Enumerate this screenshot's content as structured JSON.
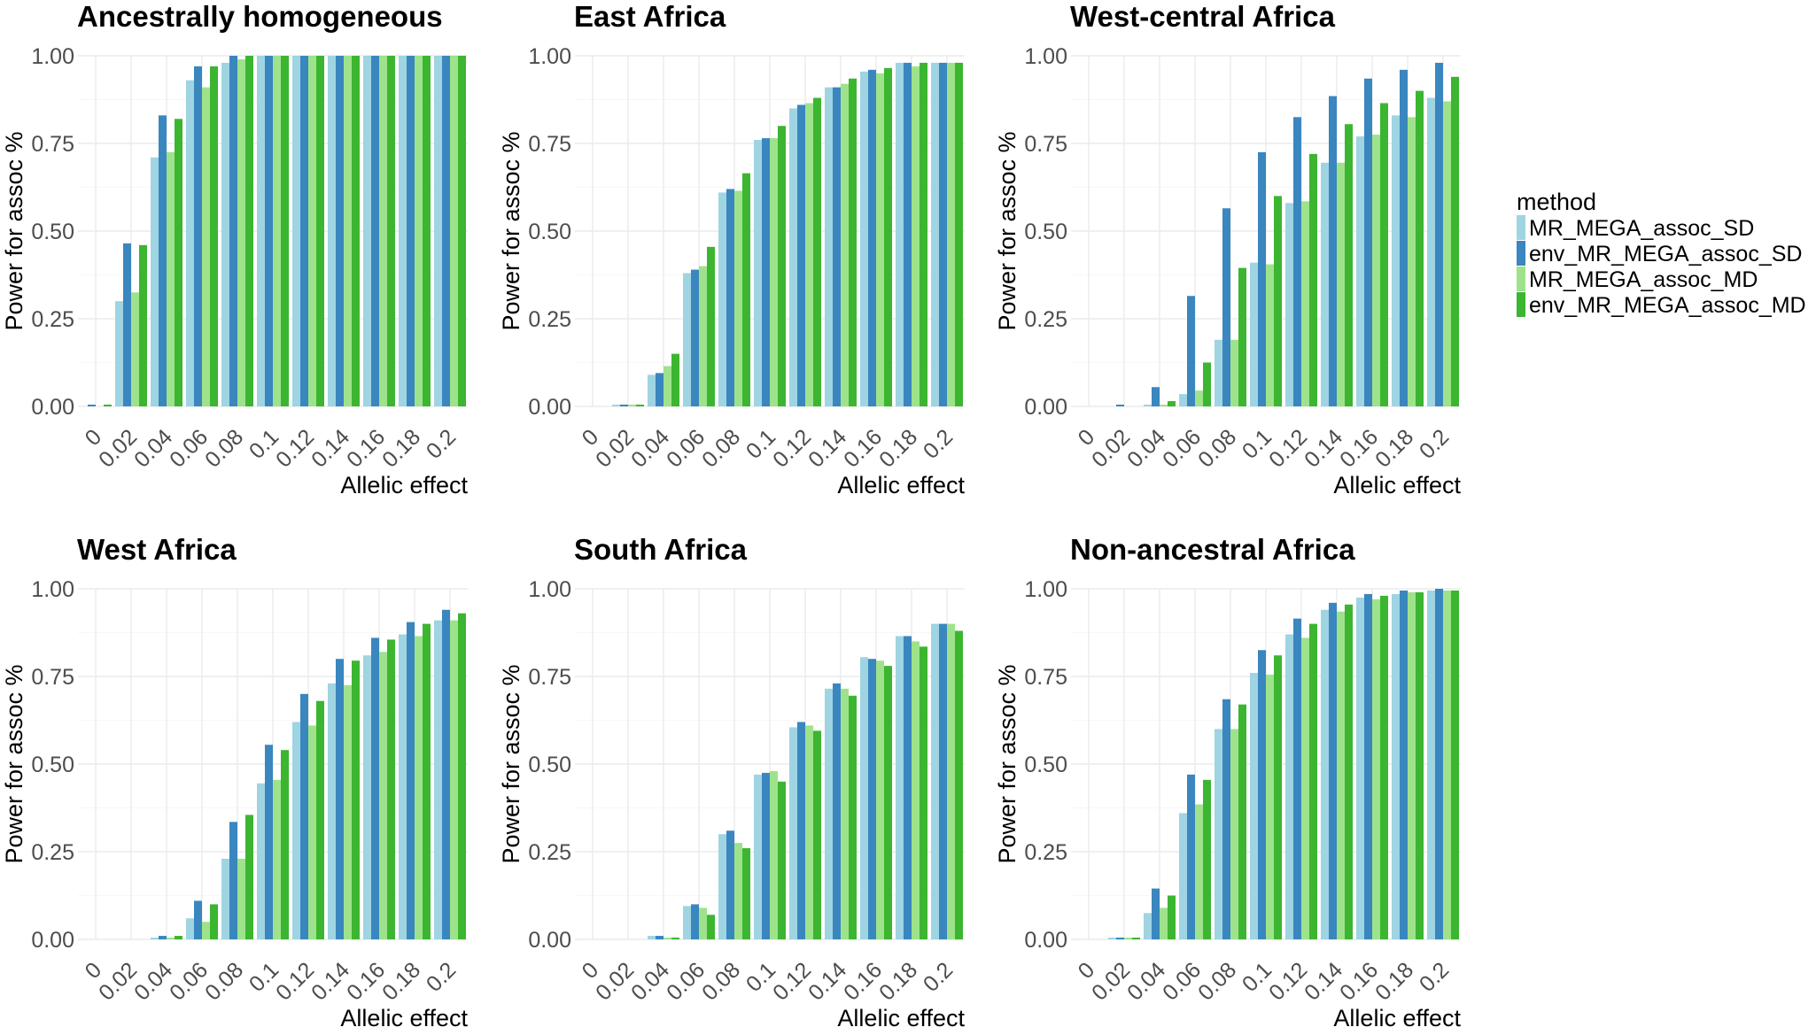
{
  "legend": {
    "title": "method",
    "entries": [
      {
        "name": "MR_MEGA_assoc_SD",
        "color": "#9fd4e2"
      },
      {
        "name": "env_MR_MEGA_assoc_SD",
        "color": "#3a86bf"
      },
      {
        "name": "MR_MEGA_assoc_MD",
        "color": "#9ee38b"
      },
      {
        "name": "env_MR_MEGA_assoc_MD",
        "color": "#3cb531"
      }
    ]
  },
  "chart_data": [
    {
      "type": "bar",
      "title": "Ancestrally homogeneous",
      "xlabel": "Allelic effect",
      "ylabel": "Power for assoc %",
      "ylim": [
        0,
        1
      ],
      "yticks": [
        "0.00",
        "0.25",
        "0.50",
        "0.75",
        "1.00"
      ],
      "categories": [
        "0",
        "0.02",
        "0.04",
        "0.06",
        "0.08",
        "0.1",
        "0.12",
        "0.14",
        "0.16",
        "0.18",
        "0.2"
      ],
      "series": [
        {
          "name": "MR_MEGA_assoc_SD",
          "values": [
            0,
            0.3,
            0.71,
            0.93,
            0.98,
            1.0,
            1.0,
            1.0,
            1.0,
            1.0,
            1.0
          ]
        },
        {
          "name": "env_MR_MEGA_assoc_SD",
          "values": [
            0.005,
            0.465,
            0.83,
            0.97,
            1.0,
            1.0,
            1.0,
            1.0,
            1.0,
            1.0,
            1.0
          ]
        },
        {
          "name": "MR_MEGA_assoc_MD",
          "values": [
            0,
            0.325,
            0.725,
            0.91,
            0.99,
            1.0,
            1.0,
            1.0,
            1.0,
            1.0,
            1.0
          ]
        },
        {
          "name": "env_MR_MEGA_assoc_MD",
          "values": [
            0.005,
            0.46,
            0.82,
            0.97,
            1.0,
            1.0,
            1.0,
            1.0,
            1.0,
            1.0,
            1.0
          ]
        }
      ]
    },
    {
      "type": "bar",
      "title": "East Africa",
      "xlabel": "Allelic effect",
      "ylabel": "Power for assoc %",
      "ylim": [
        0,
        1
      ],
      "yticks": [
        "0.00",
        "0.25",
        "0.50",
        "0.75",
        "1.00"
      ],
      "categories": [
        "0",
        "0.02",
        "0.04",
        "0.06",
        "0.08",
        "0.1",
        "0.12",
        "0.14",
        "0.16",
        "0.18",
        "0.2"
      ],
      "series": [
        {
          "name": "MR_MEGA_assoc_SD",
          "values": [
            0,
            0.005,
            0.09,
            0.38,
            0.61,
            0.76,
            0.85,
            0.91,
            0.955,
            0.98,
            0.98
          ]
        },
        {
          "name": "env_MR_MEGA_assoc_SD",
          "values": [
            0,
            0.005,
            0.095,
            0.39,
            0.62,
            0.765,
            0.86,
            0.91,
            0.96,
            0.98,
            0.98
          ]
        },
        {
          "name": "MR_MEGA_assoc_MD",
          "values": [
            0,
            0.005,
            0.115,
            0.4,
            0.615,
            0.765,
            0.865,
            0.92,
            0.95,
            0.97,
            0.98
          ]
        },
        {
          "name": "env_MR_MEGA_assoc_MD",
          "values": [
            0,
            0.005,
            0.15,
            0.455,
            0.665,
            0.8,
            0.88,
            0.935,
            0.965,
            0.98,
            0.98
          ]
        }
      ]
    },
    {
      "type": "bar",
      "title": "West-central Africa",
      "xlabel": "Allelic effect",
      "ylabel": "Power for assoc %",
      "ylim": [
        0,
        1
      ],
      "yticks": [
        "0.00",
        "0.25",
        "0.50",
        "0.75",
        "1.00"
      ],
      "categories": [
        "0",
        "0.02",
        "0.04",
        "0.06",
        "0.08",
        "0.1",
        "0.12",
        "0.14",
        "0.16",
        "0.18",
        "0.2"
      ],
      "series": [
        {
          "name": "MR_MEGA_assoc_SD",
          "values": [
            0,
            0,
            0.005,
            0.035,
            0.19,
            0.41,
            0.58,
            0.695,
            0.77,
            0.83,
            0.88
          ]
        },
        {
          "name": "env_MR_MEGA_assoc_SD",
          "values": [
            0,
            0.005,
            0.055,
            0.315,
            0.565,
            0.725,
            0.825,
            0.885,
            0.935,
            0.96,
            0.98
          ]
        },
        {
          "name": "MR_MEGA_assoc_MD",
          "values": [
            0,
            0,
            0.005,
            0.045,
            0.19,
            0.405,
            0.585,
            0.695,
            0.775,
            0.825,
            0.87
          ]
        },
        {
          "name": "env_MR_MEGA_assoc_MD",
          "values": [
            0,
            0,
            0.015,
            0.125,
            0.395,
            0.6,
            0.72,
            0.805,
            0.865,
            0.9,
            0.94
          ]
        }
      ]
    },
    {
      "type": "bar",
      "title": "West Africa",
      "xlabel": "Allelic effect",
      "ylabel": "Power for assoc %",
      "ylim": [
        0,
        1
      ],
      "yticks": [
        "0.00",
        "0.25",
        "0.50",
        "0.75",
        "1.00"
      ],
      "categories": [
        "0",
        "0.02",
        "0.04",
        "0.06",
        "0.08",
        "0.1",
        "0.12",
        "0.14",
        "0.16",
        "0.18",
        "0.2"
      ],
      "series": [
        {
          "name": "MR_MEGA_assoc_SD",
          "values": [
            0,
            0,
            0.005,
            0.06,
            0.23,
            0.445,
            0.62,
            0.73,
            0.81,
            0.87,
            0.91
          ]
        },
        {
          "name": "env_MR_MEGA_assoc_SD",
          "values": [
            0,
            0,
            0.01,
            0.11,
            0.335,
            0.555,
            0.7,
            0.8,
            0.86,
            0.905,
            0.94
          ]
        },
        {
          "name": "MR_MEGA_assoc_MD",
          "values": [
            0,
            0,
            0.005,
            0.05,
            0.23,
            0.455,
            0.61,
            0.725,
            0.82,
            0.865,
            0.91
          ]
        },
        {
          "name": "env_MR_MEGA_assoc_MD",
          "values": [
            0,
            0,
            0.01,
            0.1,
            0.355,
            0.54,
            0.68,
            0.795,
            0.855,
            0.9,
            0.93
          ]
        }
      ]
    },
    {
      "type": "bar",
      "title": "South Africa",
      "xlabel": "Allelic effect",
      "ylabel": "Power for assoc %",
      "ylim": [
        0,
        1
      ],
      "yticks": [
        "0.00",
        "0.25",
        "0.50",
        "0.75",
        "1.00"
      ],
      "categories": [
        "0",
        "0.02",
        "0.04",
        "0.06",
        "0.08",
        "0.1",
        "0.12",
        "0.14",
        "0.16",
        "0.18",
        "0.2"
      ],
      "series": [
        {
          "name": "MR_MEGA_assoc_SD",
          "values": [
            0,
            0,
            0.01,
            0.095,
            0.3,
            0.47,
            0.605,
            0.715,
            0.805,
            0.865,
            0.9
          ]
        },
        {
          "name": "env_MR_MEGA_assoc_SD",
          "values": [
            0,
            0,
            0.01,
            0.1,
            0.31,
            0.475,
            0.62,
            0.73,
            0.8,
            0.865,
            0.9
          ]
        },
        {
          "name": "MR_MEGA_assoc_MD",
          "values": [
            0,
            0,
            0.005,
            0.09,
            0.275,
            0.48,
            0.61,
            0.715,
            0.795,
            0.85,
            0.9
          ]
        },
        {
          "name": "env_MR_MEGA_assoc_MD",
          "values": [
            0,
            0,
            0.005,
            0.07,
            0.26,
            0.45,
            0.595,
            0.695,
            0.78,
            0.835,
            0.88
          ]
        }
      ]
    },
    {
      "type": "bar",
      "title": "Non-ancestral Africa",
      "xlabel": "Allelic effect",
      "ylabel": "Power for assoc %",
      "ylim": [
        0,
        1
      ],
      "yticks": [
        "0.00",
        "0.25",
        "0.50",
        "0.75",
        "1.00"
      ],
      "categories": [
        "0",
        "0.02",
        "0.04",
        "0.06",
        "0.08",
        "0.1",
        "0.12",
        "0.14",
        "0.16",
        "0.18",
        "0.2"
      ],
      "series": [
        {
          "name": "MR_MEGA_assoc_SD",
          "values": [
            0,
            0.005,
            0.075,
            0.36,
            0.6,
            0.76,
            0.87,
            0.94,
            0.975,
            0.985,
            0.995
          ]
        },
        {
          "name": "env_MR_MEGA_assoc_SD",
          "values": [
            0,
            0.005,
            0.145,
            0.47,
            0.685,
            0.825,
            0.915,
            0.96,
            0.985,
            0.995,
            1.0
          ]
        },
        {
          "name": "MR_MEGA_assoc_MD",
          "values": [
            0,
            0.005,
            0.09,
            0.385,
            0.6,
            0.755,
            0.86,
            0.935,
            0.97,
            0.99,
            0.995
          ]
        },
        {
          "name": "env_MR_MEGA_assoc_MD",
          "values": [
            0,
            0.005,
            0.125,
            0.455,
            0.67,
            0.81,
            0.9,
            0.955,
            0.98,
            0.99,
            0.995
          ]
        }
      ]
    }
  ]
}
